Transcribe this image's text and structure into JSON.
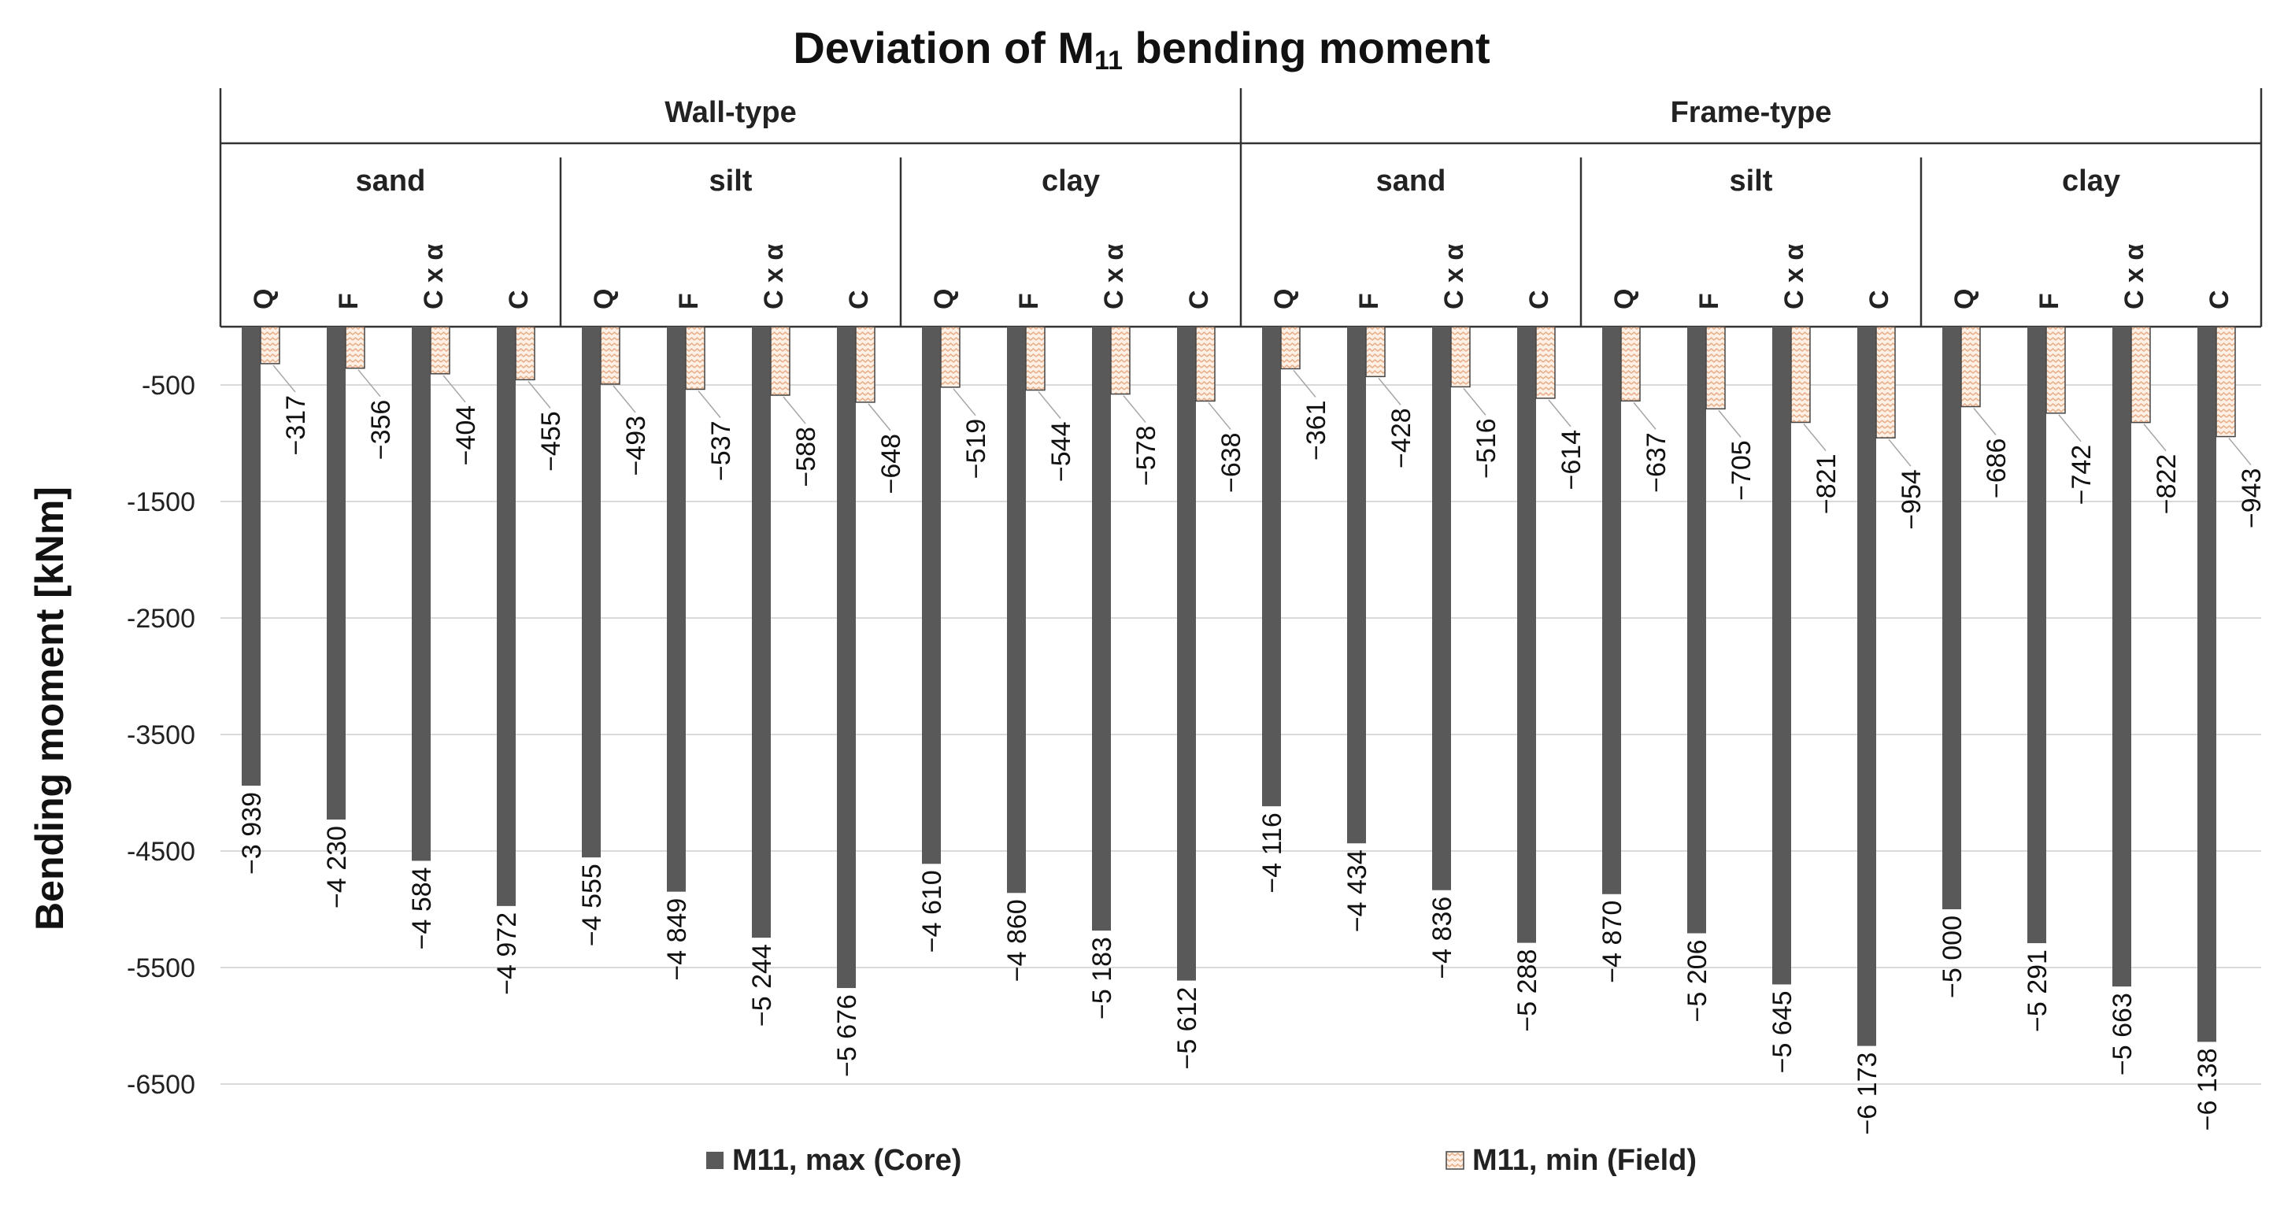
{
  "chart_data": {
    "type": "bar",
    "title": "Deviation of M",
    "title_sub": "11",
    "title_rest": " bending moment",
    "ylabel": "Bending moment [kNm]",
    "ylim": [
      -6500,
      0
    ],
    "yticks": [
      "-500",
      "-1500",
      "-2500",
      "-3500",
      "-4500",
      "-5500",
      "-6500"
    ],
    "ytick_values": [
      -500,
      -1500,
      -2500,
      -3500,
      -4500,
      -5500,
      -6500
    ],
    "grid": true,
    "legend_position": "bottom",
    "groups": [
      {
        "name": "Wall-type",
        "subgroups": [
          {
            "name": "sand",
            "categories": [
              "Q",
              "F",
              "C x α",
              "C"
            ]
          },
          {
            "name": "silt",
            "categories": [
              "Q",
              "F",
              "C x α",
              "C"
            ]
          },
          {
            "name": "clay",
            "categories": [
              "Q",
              "F",
              "C x α",
              "C"
            ]
          }
        ]
      },
      {
        "name": "Frame-type",
        "subgroups": [
          {
            "name": "sand",
            "categories": [
              "Q",
              "F",
              "C x α",
              "C"
            ]
          },
          {
            "name": "silt",
            "categories": [
              "Q",
              "F",
              "C x α",
              "C"
            ]
          },
          {
            "name": "clay",
            "categories": [
              "Q",
              "F",
              "C x α",
              "C"
            ]
          }
        ]
      }
    ],
    "series": [
      {
        "name": "M11, max (Core)",
        "color": "#595959",
        "pattern": "solid",
        "values": [
          -3939,
          -4230,
          -4584,
          -4972,
          -4555,
          -4849,
          -5244,
          -5676,
          -4610,
          -4860,
          -5183,
          -5612,
          -4116,
          -4434,
          -4836,
          -5288,
          -4870,
          -5206,
          -5645,
          -6173,
          -5000,
          -5291,
          -5663,
          -6138
        ],
        "labels": [
          "−3 939",
          "−4 230",
          "−4 584",
          "−4 972",
          "−4 555",
          "−4 849",
          "−5 244",
          "−5 676",
          "−4 610",
          "−4 860",
          "−5 183",
          "−5 612",
          "−4 116",
          "−4 434",
          "−4 836",
          "−5 288",
          "−4 870",
          "−5 206",
          "−5 645",
          "−6 173",
          "−5 000",
          "−5 291",
          "−5 663",
          "−6 138"
        ]
      },
      {
        "name": "M11, min (Field)",
        "color": "#fbe5d6",
        "pattern": "zigzag",
        "values": [
          -317,
          -356,
          -404,
          -455,
          -493,
          -537,
          -588,
          -648,
          -519,
          -544,
          -578,
          -638,
          -361,
          -428,
          -516,
          -614,
          -637,
          -705,
          -821,
          -954,
          -686,
          -742,
          -822,
          -943
        ],
        "labels": [
          "−317",
          "−356",
          "−404",
          "−455",
          "−493",
          "−537",
          "−588",
          "−648",
          "−519",
          "−544",
          "−578",
          "−638",
          "−361",
          "−428",
          "−516",
          "−614",
          "−637",
          "−705",
          "−821",
          "−954",
          "−686",
          "−742",
          "−822",
          "−943"
        ]
      }
    ]
  }
}
